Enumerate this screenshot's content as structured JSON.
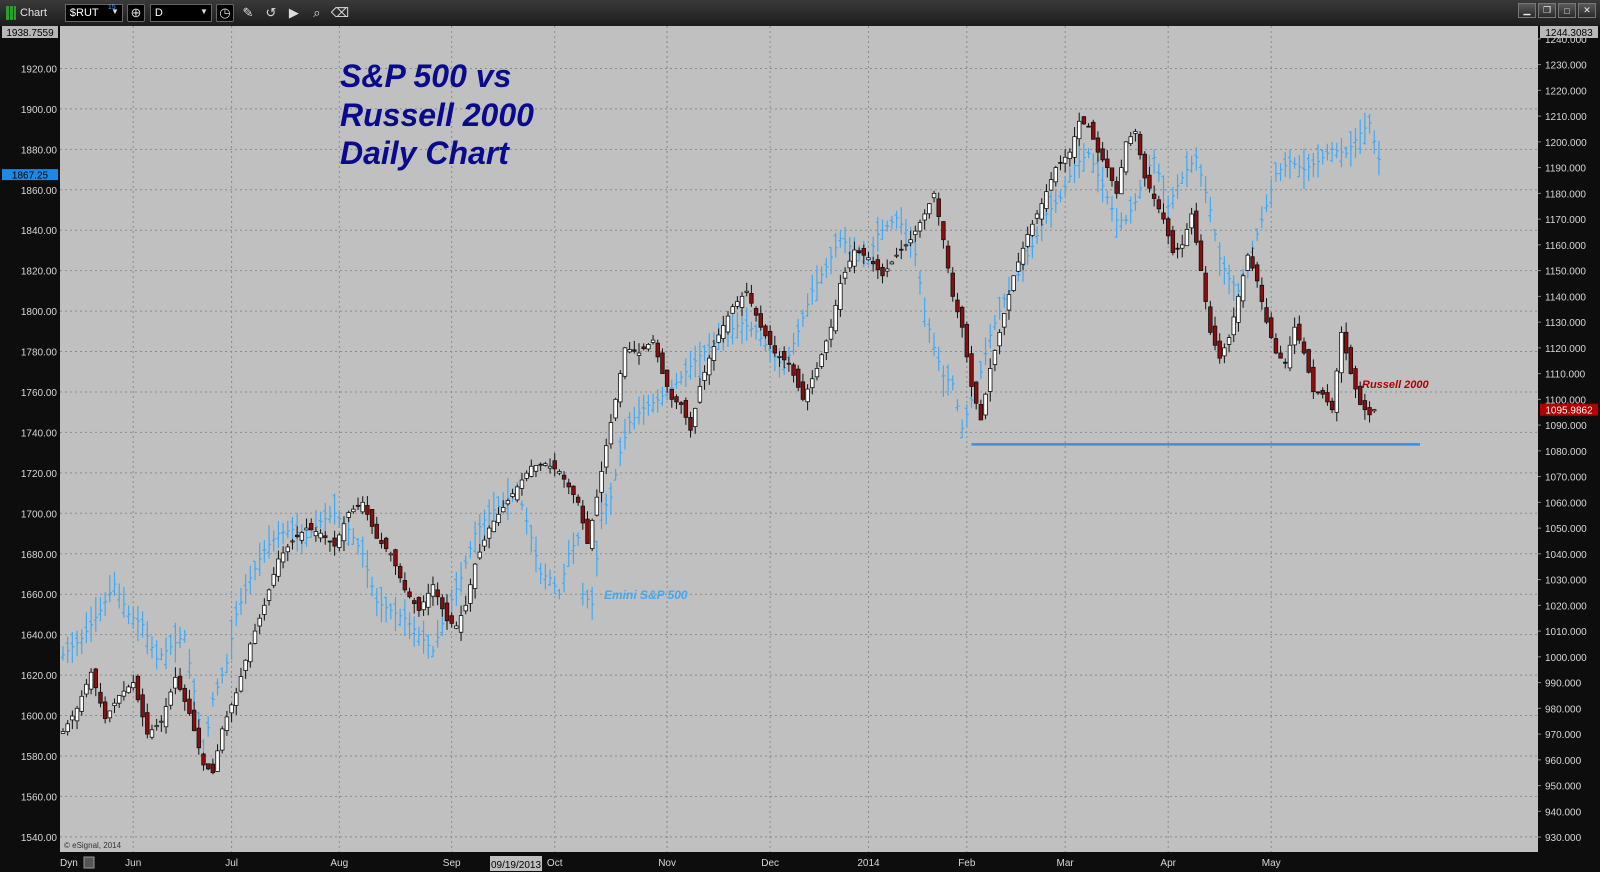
{
  "window": {
    "title": "Chart",
    "symbol": "$RUT",
    "symbol_badge": "15",
    "interval": "D",
    "controls": [
      "minimize-icon",
      "restore-icon",
      "maximize-icon",
      "close-icon"
    ]
  },
  "toolbar_icons": [
    "crosshair-icon",
    "clock-icon",
    "pencil-icon",
    "curve-icon",
    "play-icon",
    "zoom-icon",
    "eraser-icon"
  ],
  "bottom": {
    "dyn_label": "Dyn",
    "date_readout": "09/19/2013",
    "copyright": "© eSignal, 2014"
  },
  "colors": {
    "background": "#c0c0c0",
    "sp500": "#3fa9f5",
    "russell_up_fill": "#ffffff",
    "russell_down_fill": "#8b0e0e",
    "support_line": "#3b8fe0",
    "title": "#0a0a8c",
    "russell_label": "#b00000",
    "price_tag_left": "#1e88e5",
    "price_tag_right": "#b00000"
  },
  "chart_data": {
    "type": "line",
    "title": "S&P 500 vs Russell 2000 Daily Chart",
    "title_lines": [
      "S&P 500 vs",
      "Russell 2000",
      "Daily Chart"
    ],
    "x_labels": [
      "Jun",
      "Jul",
      "Aug",
      "Sep",
      "Oct",
      "Nov",
      "Dec",
      "2014",
      "Feb",
      "Mar",
      "Apr",
      "May"
    ],
    "left_axis": {
      "min": 1532.5,
      "max": 1941,
      "ticks": [
        1540,
        1560,
        1580,
        1600,
        1620,
        1640,
        1660,
        1680,
        1700,
        1720,
        1740,
        1760,
        1780,
        1800,
        1820,
        1840,
        1860,
        1880,
        1900,
        1920
      ],
      "top_label": "1938.7559",
      "current_tag": "1867.25"
    },
    "right_axis": {
      "min": 924.2,
      "max": 1245.0,
      "ticks": [
        930,
        940,
        950,
        960,
        970,
        980,
        990,
        1000,
        1010,
        1020,
        1030,
        1040,
        1050,
        1060,
        1070,
        1080,
        1090,
        1100,
        1110,
        1120,
        1130,
        1140,
        1150,
        1160,
        1170,
        1180,
        1190,
        1200,
        1210,
        1220,
        1230,
        1240
      ],
      "top_label": "1244.3083",
      "current_tag": "1095.9862"
    },
    "grid": true,
    "annotations": [
      {
        "text": "Emini S&P 500",
        "series": "sp500"
      },
      {
        "text": "Russell 2000",
        "series": "russell"
      }
    ],
    "support_level_russell": 1082.5,
    "series": [
      {
        "name": "Emini S&P 500",
        "style": "ohlc-bars",
        "axis": "left",
        "keypoints": [
          [
            0,
            1630
          ],
          [
            4,
            1638
          ],
          [
            8,
            1652
          ],
          [
            11,
            1665
          ],
          [
            14,
            1650
          ],
          [
            17,
            1645
          ],
          [
            20,
            1628
          ],
          [
            23,
            1634
          ],
          [
            26,
            1640
          ],
          [
            29,
            1598
          ],
          [
            30,
            1580
          ],
          [
            32,
            1608
          ],
          [
            35,
            1626
          ],
          [
            37,
            1650
          ],
          [
            40,
            1668
          ],
          [
            43,
            1682
          ],
          [
            46,
            1690
          ],
          [
            49,
            1692
          ],
          [
            52,
            1688
          ],
          [
            55,
            1696
          ],
          [
            58,
            1700
          ],
          [
            61,
            1692
          ],
          [
            64,
            1680
          ],
          [
            67,
            1656
          ],
          [
            70,
            1652
          ],
          [
            73,
            1648
          ],
          [
            76,
            1640
          ],
          [
            79,
            1632
          ],
          [
            82,
            1652
          ],
          [
            85,
            1668
          ],
          [
            88,
            1690
          ],
          [
            91,
            1700
          ],
          [
            94,
            1705
          ],
          [
            97,
            1712
          ],
          [
            100,
            1688
          ],
          [
            102,
            1670
          ],
          [
            104,
            1668
          ],
          [
            106,
            1660
          ],
          [
            108,
            1680
          ],
          [
            110,
            1688
          ],
          [
            111,
            1660
          ],
          [
            113,
            1655
          ],
          [
            115,
            1700
          ],
          [
            117,
            1708
          ],
          [
            119,
            1730
          ],
          [
            121,
            1745
          ],
          [
            124,
            1752
          ],
          [
            127,
            1756
          ],
          [
            130,
            1762
          ],
          [
            133,
            1770
          ],
          [
            136,
            1778
          ],
          [
            139,
            1784
          ],
          [
            142,
            1790
          ],
          [
            145,
            1794
          ],
          [
            148,
            1790
          ],
          [
            151,
            1780
          ],
          [
            154,
            1772
          ],
          [
            157,
            1790
          ],
          [
            160,
            1810
          ],
          [
            163,
            1822
          ],
          [
            166,
            1836
          ],
          [
            169,
            1830
          ],
          [
            172,
            1826
          ],
          [
            174,
            1838
          ],
          [
            176,
            1842
          ],
          [
            178,
            1846
          ],
          [
            180,
            1840
          ],
          [
            182,
            1828
          ],
          [
            184,
            1800
          ],
          [
            186,
            1782
          ],
          [
            188,
            1768
          ],
          [
            190,
            1764
          ],
          [
            192,
            1742
          ],
          [
            194,
            1756
          ],
          [
            196,
            1770
          ],
          [
            198,
            1788
          ],
          [
            201,
            1806
          ],
          [
            204,
            1818
          ],
          [
            207,
            1832
          ],
          [
            210,
            1848
          ],
          [
            213,
            1856
          ],
          [
            216,
            1872
          ],
          [
            219,
            1878
          ],
          [
            222,
            1862
          ],
          [
            225,
            1845
          ],
          [
            227,
            1845
          ],
          [
            229,
            1854
          ],
          [
            231,
            1868
          ],
          [
            233,
            1876
          ],
          [
            236,
            1852
          ],
          [
            238,
            1862
          ],
          [
            240,
            1870
          ],
          [
            242,
            1876
          ],
          [
            245,
            1850
          ],
          [
            247,
            1826
          ],
          [
            249,
            1816
          ],
          [
            251,
            1810
          ],
          [
            253,
            1824
          ],
          [
            255,
            1838
          ],
          [
            257,
            1852
          ],
          [
            259,
            1868
          ],
          [
            262,
            1874
          ],
          [
            265,
            1870
          ],
          [
            268,
            1874
          ],
          [
            271,
            1880
          ],
          [
            274,
            1878
          ],
          [
            277,
            1888
          ],
          [
            279,
            1893
          ],
          [
            281,
            1875
          ]
        ]
      },
      {
        "name": "Russell 2000",
        "style": "candlestick",
        "axis": "right",
        "keypoints": [
          [
            0,
            971
          ],
          [
            3,
            980
          ],
          [
            6,
            994
          ],
          [
            9,
            976
          ],
          [
            12,
            985
          ],
          [
            15,
            990
          ],
          [
            18,
            970
          ],
          [
            21,
            975
          ],
          [
            24,
            992
          ],
          [
            27,
            978
          ],
          [
            30,
            958
          ],
          [
            32,
            955
          ],
          [
            34,
            972
          ],
          [
            37,
            986
          ],
          [
            40,
            1005
          ],
          [
            43,
            1020
          ],
          [
            46,
            1038
          ],
          [
            49,
            1045
          ],
          [
            52,
            1050
          ],
          [
            55,
            1048
          ],
          [
            58,
            1043
          ],
          [
            61,
            1056
          ],
          [
            64,
            1060
          ],
          [
            67,
            1046
          ],
          [
            70,
            1040
          ],
          [
            73,
            1026
          ],
          [
            76,
            1018
          ],
          [
            79,
            1028
          ],
          [
            82,
            1014
          ],
          [
            84,
            1012
          ],
          [
            86,
            1020
          ],
          [
            88,
            1036
          ],
          [
            91,
            1050
          ],
          [
            94,
            1058
          ],
          [
            97,
            1066
          ],
          [
            100,
            1074
          ],
          [
            103,
            1075
          ],
          [
            106,
            1072
          ],
          [
            108,
            1066
          ],
          [
            110,
            1060
          ],
          [
            112,
            1044
          ],
          [
            114,
            1062
          ],
          [
            116,
            1082
          ],
          [
            118,
            1100
          ],
          [
            120,
            1120
          ],
          [
            123,
            1118
          ],
          [
            126,
            1123
          ],
          [
            128,
            1110
          ],
          [
            130,
            1100
          ],
          [
            132,
            1098
          ],
          [
            134,
            1088
          ],
          [
            136,
            1105
          ],
          [
            138,
            1116
          ],
          [
            140,
            1125
          ],
          [
            143,
            1136
          ],
          [
            146,
            1142
          ],
          [
            149,
            1128
          ],
          [
            152,
            1118
          ],
          [
            155,
            1114
          ],
          [
            158,
            1100
          ],
          [
            161,
            1112
          ],
          [
            164,
            1128
          ],
          [
            166,
            1145
          ],
          [
            169,
            1158
          ],
          [
            172,
            1155
          ],
          [
            175,
            1148
          ],
          [
            178,
            1156
          ],
          [
            181,
            1162
          ],
          [
            184,
            1172
          ],
          [
            186,
            1180
          ],
          [
            188,
            1162
          ],
          [
            190,
            1140
          ],
          [
            192,
            1128
          ],
          [
            194,
            1105
          ],
          [
            196,
            1092
          ],
          [
            198,
            1112
          ],
          [
            200,
            1126
          ],
          [
            203,
            1148
          ],
          [
            206,
            1164
          ],
          [
            209,
            1176
          ],
          [
            212,
            1190
          ],
          [
            215,
            1196
          ],
          [
            217,
            1208
          ],
          [
            219,
            1206
          ],
          [
            221,
            1196
          ],
          [
            223,
            1190
          ],
          [
            225,
            1180
          ],
          [
            227,
            1200
          ],
          [
            229,
            1204
          ],
          [
            231,
            1186
          ],
          [
            233,
            1178
          ],
          [
            235,
            1170
          ],
          [
            237,
            1157
          ],
          [
            239,
            1160
          ],
          [
            241,
            1172
          ],
          [
            243,
            1150
          ],
          [
            245,
            1126
          ],
          [
            247,
            1116
          ],
          [
            249,
            1124
          ],
          [
            251,
            1140
          ],
          [
            253,
            1156
          ],
          [
            255,
            1146
          ],
          [
            257,
            1130
          ],
          [
            259,
            1118
          ],
          [
            261,
            1114
          ],
          [
            263,
            1128
          ],
          [
            265,
            1118
          ],
          [
            267,
            1103
          ],
          [
            269,
            1102
          ],
          [
            271,
            1096
          ],
          [
            273,
            1126
          ],
          [
            275,
            1110
          ],
          [
            277,
            1098
          ],
          [
            279,
            1094
          ],
          [
            280,
            1096
          ]
        ]
      }
    ]
  }
}
